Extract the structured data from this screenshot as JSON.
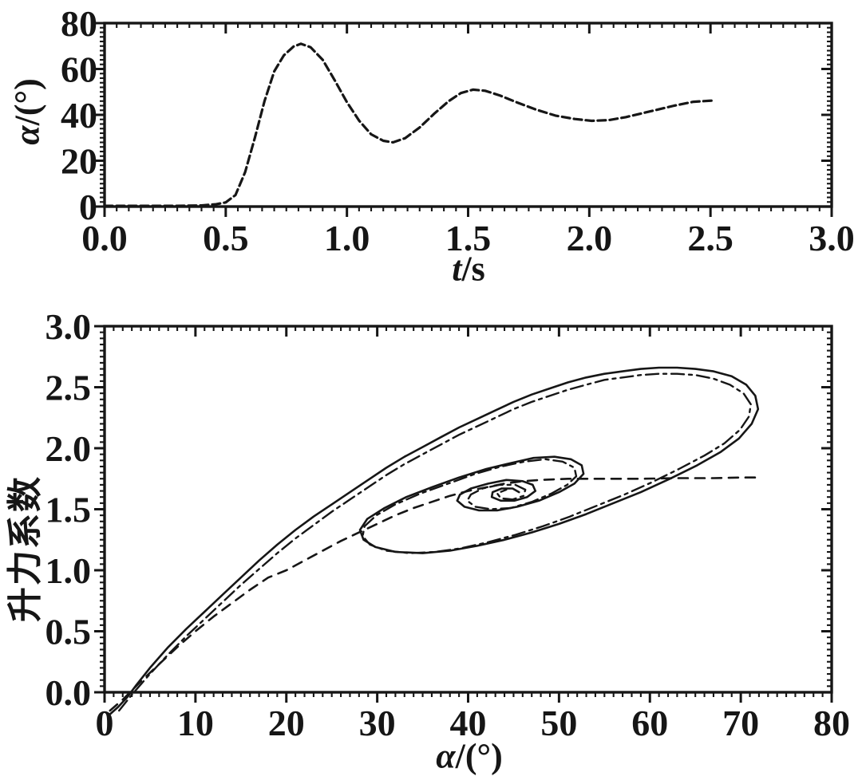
{
  "page": {
    "background": "#ffffff",
    "ink": "#161616"
  },
  "chart_data": [
    {
      "id": "alpha-vs-time",
      "type": "line",
      "title": "",
      "xlabel_var": "t",
      "xlabel_rest": "/s",
      "ylabel_var": "α",
      "ylabel_rest": "/(°)",
      "xlim": [
        0,
        3.0
      ],
      "ylim": [
        0,
        80
      ],
      "grid": false,
      "legend_position": "none",
      "xticks": {
        "values": [
          0,
          0.5,
          1.0,
          1.5,
          2.0,
          2.5,
          3.0
        ],
        "labels": [
          "0.0",
          "0.5",
          "1.0",
          "1.5",
          "2.0",
          "2.5",
          "3.0"
        ],
        "minor_step": 0.05
      },
      "yticks": {
        "values": [
          0,
          20,
          40,
          60,
          80
        ],
        "labels": [
          "0",
          "20",
          "40",
          "60",
          "80"
        ],
        "minor_step": 2
      },
      "series": [
        {
          "name": "angle-of-attack-response",
          "style": "dashed",
          "color": "#161616",
          "points": [
            [
              0.0,
              0.3
            ],
            [
              0.15,
              0.3
            ],
            [
              0.3,
              0.3
            ],
            [
              0.4,
              0.5
            ],
            [
              0.46,
              1.0
            ],
            [
              0.5,
              1.8
            ],
            [
              0.54,
              5
            ],
            [
              0.58,
              15
            ],
            [
              0.62,
              30
            ],
            [
              0.66,
              46
            ],
            [
              0.7,
              59
            ],
            [
              0.74,
              66
            ],
            [
              0.78,
              69.8
            ],
            [
              0.81,
              71
            ],
            [
              0.85,
              69.5
            ],
            [
              0.9,
              64
            ],
            [
              0.95,
              55
            ],
            [
              1.0,
              45.5
            ],
            [
              1.05,
              37.5
            ],
            [
              1.1,
              31.5
            ],
            [
              1.15,
              28.7
            ],
            [
              1.19,
              28
            ],
            [
              1.24,
              29.8
            ],
            [
              1.3,
              34.5
            ],
            [
              1.36,
              40.5
            ],
            [
              1.42,
              46
            ],
            [
              1.47,
              49.5
            ],
            [
              1.52,
              51
            ],
            [
              1.57,
              50.5
            ],
            [
              1.63,
              48.5
            ],
            [
              1.7,
              45.5
            ],
            [
              1.78,
              42.3
            ],
            [
              1.86,
              39.7
            ],
            [
              1.94,
              38.2
            ],
            [
              2.01,
              37.4
            ],
            [
              2.08,
              37.7
            ],
            [
              2.15,
              39
            ],
            [
              2.25,
              41.5
            ],
            [
              2.35,
              44
            ],
            [
              2.43,
              45.7
            ],
            [
              2.52,
              46.3
            ]
          ]
        }
      ]
    },
    {
      "id": "lift-vs-alpha",
      "type": "line",
      "title": "",
      "xlabel_var": "α",
      "xlabel_rest": "/(°)",
      "ylabel_text": "升力系数",
      "xlim": [
        0,
        80
      ],
      "ylim": [
        0,
        3.0
      ],
      "grid": false,
      "legend_position": "none",
      "xticks": {
        "values": [
          0,
          10,
          20,
          30,
          40,
          50,
          60,
          70,
          80
        ],
        "labels": [
          "0",
          "10",
          "20",
          "30",
          "40",
          "50",
          "60",
          "70",
          "80"
        ],
        "minor_step": 1
      },
      "yticks": {
        "values": [
          0,
          0.5,
          1.0,
          1.5,
          2.0,
          2.5,
          3.0
        ],
        "labels": [
          "0.0",
          "0.5",
          "1.0",
          "1.5",
          "2.0",
          "2.5",
          "3.0"
        ],
        "minor_step": 0.05
      },
      "series": [
        {
          "name": "dynamic-lift-loop-solid",
          "style": "solid",
          "color": "#161616",
          "points": [
            [
              0.6,
              -0.18
            ],
            [
              1.5,
              -0.12
            ],
            [
              2.5,
              -0.04
            ],
            [
              3.5,
              0.06
            ],
            [
              5,
              0.2
            ],
            [
              7,
              0.37
            ],
            [
              9,
              0.52
            ],
            [
              11,
              0.66
            ],
            [
              13,
              0.8
            ],
            [
              15,
              0.94
            ],
            [
              17,
              1.08
            ],
            [
              19,
              1.21
            ],
            [
              21,
              1.33
            ],
            [
              23,
              1.44
            ],
            [
              25,
              1.54
            ],
            [
              27,
              1.64
            ],
            [
              29,
              1.74
            ],
            [
              31,
              1.84
            ],
            [
              33,
              1.93
            ],
            [
              35,
              2.01
            ],
            [
              37,
              2.09
            ],
            [
              39,
              2.17
            ],
            [
              41,
              2.24
            ],
            [
              43,
              2.31
            ],
            [
              45,
              2.38
            ],
            [
              47,
              2.44
            ],
            [
              49,
              2.49
            ],
            [
              51,
              2.54
            ],
            [
              53,
              2.58
            ],
            [
              55,
              2.61
            ],
            [
              57,
              2.63
            ],
            [
              59,
              2.65
            ],
            [
              61,
              2.66
            ],
            [
              63,
              2.66
            ],
            [
              65,
              2.65
            ],
            [
              67,
              2.63
            ],
            [
              69,
              2.59
            ],
            [
              70.6,
              2.52
            ],
            [
              71.6,
              2.43
            ],
            [
              71.9,
              2.32
            ],
            [
              71.2,
              2.2
            ],
            [
              69.8,
              2.08
            ],
            [
              67.8,
              1.97
            ],
            [
              65.2,
              1.86
            ],
            [
              62.2,
              1.75
            ],
            [
              59,
              1.64
            ],
            [
              56,
              1.55
            ],
            [
              53,
              1.46
            ],
            [
              50,
              1.38
            ],
            [
              47,
              1.31
            ],
            [
              44,
              1.25
            ],
            [
              41,
              1.2
            ],
            [
              38,
              1.16
            ],
            [
              35,
              1.14
            ],
            [
              32,
              1.15
            ],
            [
              29.8,
              1.19
            ],
            [
              28.5,
              1.25
            ],
            [
              28.1,
              1.33
            ],
            [
              28.9,
              1.42
            ],
            [
              30.8,
              1.51
            ],
            [
              33.2,
              1.6
            ],
            [
              36,
              1.68
            ],
            [
              39,
              1.76
            ],
            [
              42,
              1.83
            ],
            [
              44.8,
              1.88
            ],
            [
              47.2,
              1.92
            ],
            [
              49.5,
              1.93
            ],
            [
              51.3,
              1.91
            ],
            [
              52.5,
              1.86
            ],
            [
              52.7,
              1.79
            ],
            [
              51.7,
              1.71
            ],
            [
              50,
              1.64
            ],
            [
              47.8,
              1.57
            ],
            [
              45.4,
              1.52
            ],
            [
              43.2,
              1.49
            ],
            [
              41.2,
              1.49
            ],
            [
              39.6,
              1.52
            ],
            [
              38.8,
              1.57
            ],
            [
              39.1,
              1.62
            ],
            [
              40.3,
              1.67
            ],
            [
              42.2,
              1.71
            ],
            [
              44.2,
              1.74
            ],
            [
              46,
              1.73
            ],
            [
              47.1,
              1.7
            ],
            [
              47.4,
              1.65
            ],
            [
              46.5,
              1.6
            ],
            [
              45.1,
              1.57
            ],
            [
              43.6,
              1.57
            ],
            [
              42.6,
              1.6
            ],
            [
              42.7,
              1.64
            ],
            [
              43.7,
              1.67
            ],
            [
              44.9,
              1.67
            ],
            [
              45.6,
              1.64
            ]
          ]
        },
        {
          "name": "dynamic-lift-loop-dashdot",
          "style": "dashdot",
          "color": "#161616",
          "points": [
            [
              1.6,
              -0.15
            ],
            [
              3,
              -0.02
            ],
            [
              5,
              0.15
            ],
            [
              7,
              0.31
            ],
            [
              9,
              0.46
            ],
            [
              11,
              0.6
            ],
            [
              13,
              0.74
            ],
            [
              15,
              0.88
            ],
            [
              17,
              1.01
            ],
            [
              19,
              1.14
            ],
            [
              21,
              1.26
            ],
            [
              23,
              1.37
            ],
            [
              25,
              1.48
            ],
            [
              27,
              1.58
            ],
            [
              29,
              1.68
            ],
            [
              31,
              1.78
            ],
            [
              33,
              1.87
            ],
            [
              35,
              1.95
            ],
            [
              37,
              2.03
            ],
            [
              39,
              2.11
            ],
            [
              41,
              2.18
            ],
            [
              43,
              2.25
            ],
            [
              45,
              2.32
            ],
            [
              47,
              2.38
            ],
            [
              49,
              2.43
            ],
            [
              51,
              2.48
            ],
            [
              53,
              2.52
            ],
            [
              55,
              2.56
            ],
            [
              57,
              2.58
            ],
            [
              59,
              2.6
            ],
            [
              61,
              2.61
            ],
            [
              63,
              2.61
            ],
            [
              65,
              2.6
            ],
            [
              67,
              2.57
            ],
            [
              68.8,
              2.52
            ],
            [
              70.3,
              2.45
            ],
            [
              71.1,
              2.36
            ],
            [
              70.9,
              2.26
            ],
            [
              69.9,
              2.15
            ],
            [
              68.2,
              2.04
            ],
            [
              66,
              1.94
            ],
            [
              63.2,
              1.83
            ],
            [
              60.2,
              1.72
            ],
            [
              57.2,
              1.62
            ],
            [
              54.2,
              1.53
            ],
            [
              51.2,
              1.44
            ],
            [
              48.2,
              1.36
            ],
            [
              45.2,
              1.29
            ],
            [
              42.2,
              1.23
            ],
            [
              39.2,
              1.18
            ],
            [
              36.4,
              1.15
            ],
            [
              33.6,
              1.14
            ],
            [
              31,
              1.16
            ],
            [
              29.2,
              1.21
            ],
            [
              28.4,
              1.28
            ],
            [
              28.6,
              1.36
            ],
            [
              29.9,
              1.45
            ],
            [
              32,
              1.54
            ],
            [
              34.8,
              1.63
            ],
            [
              37.8,
              1.71
            ],
            [
              40.8,
              1.79
            ],
            [
              43.6,
              1.85
            ],
            [
              46.2,
              1.89
            ],
            [
              48.5,
              1.91
            ],
            [
              50.4,
              1.89
            ],
            [
              51.7,
              1.84
            ],
            [
              51.9,
              1.77
            ],
            [
              50.9,
              1.7
            ],
            [
              49.2,
              1.63
            ],
            [
              47,
              1.56
            ],
            [
              44.7,
              1.51
            ],
            [
              42.5,
              1.5
            ],
            [
              40.8,
              1.52
            ],
            [
              39.9,
              1.57
            ],
            [
              40.3,
              1.62
            ],
            [
              41.6,
              1.67
            ],
            [
              43.4,
              1.7
            ],
            [
              45.2,
              1.7
            ],
            [
              46.3,
              1.66
            ],
            [
              46.1,
              1.61
            ],
            [
              44.9,
              1.58
            ],
            [
              43.6,
              1.59
            ],
            [
              43.2,
              1.63
            ],
            [
              44.2,
              1.66
            ]
          ]
        },
        {
          "name": "static-lift-curve-dashed",
          "style": "sparse-dashed",
          "color": "#161616",
          "points": [
            [
              0.6,
              -0.15
            ],
            [
              2,
              -0.06
            ],
            [
              4,
              0.09
            ],
            [
              6,
              0.23
            ],
            [
              8,
              0.37
            ],
            [
              10,
              0.5
            ],
            [
              12,
              0.62
            ],
            [
              14,
              0.73
            ],
            [
              16,
              0.84
            ],
            [
              18,
              0.94
            ],
            [
              20,
              1.0
            ],
            [
              22,
              1.08
            ],
            [
              24,
              1.16
            ],
            [
              26,
              1.24
            ],
            [
              28,
              1.31
            ],
            [
              30,
              1.38
            ],
            [
              32,
              1.45
            ],
            [
              34,
              1.51
            ],
            [
              36,
              1.56
            ],
            [
              38,
              1.61
            ],
            [
              40,
              1.65
            ],
            [
              42,
              1.68
            ],
            [
              44,
              1.71
            ],
            [
              46,
              1.73
            ],
            [
              48,
              1.74
            ],
            [
              51,
              1.75
            ],
            [
              55,
              1.75
            ],
            [
              59,
              1.75
            ],
            [
              63,
              1.755
            ],
            [
              67,
              1.755
            ],
            [
              70,
              1.76
            ],
            [
              72,
              1.76
            ]
          ]
        }
      ]
    }
  ]
}
